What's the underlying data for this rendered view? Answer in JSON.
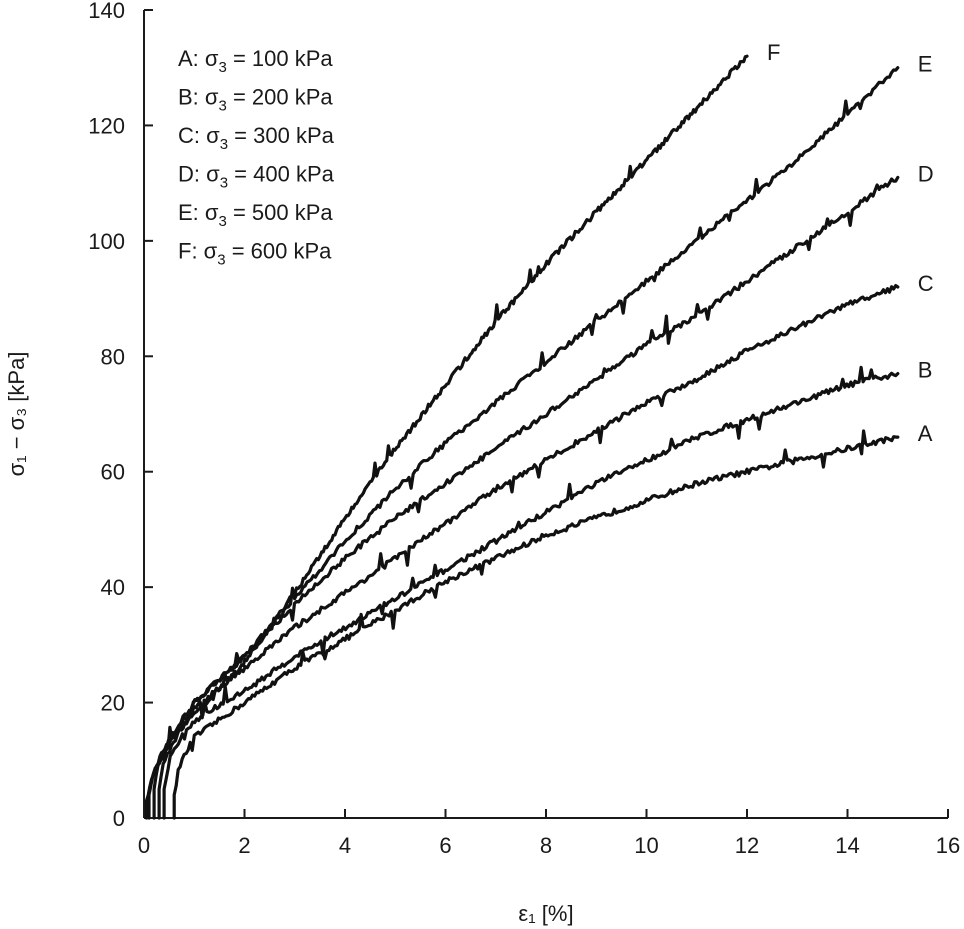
{
  "chart_data": {
    "type": "line",
    "title": "",
    "xlabel": "ε₁ [%]",
    "ylabel": "σ₁ − σ₃ [kPa]",
    "xlim": [
      0,
      16
    ],
    "ylim": [
      0,
      140
    ],
    "xticks": [
      0,
      2,
      4,
      6,
      8,
      10,
      12,
      14,
      16
    ],
    "yticks": [
      0,
      20,
      40,
      60,
      80,
      100,
      120,
      140
    ],
    "grid": false,
    "legend_position": "top-left",
    "legend": [
      {
        "id": "A",
        "prefix": "A: ",
        "symbol": "σ",
        "sub": "3",
        "suffix": " = 100 kPa"
      },
      {
        "id": "B",
        "prefix": "B: ",
        "symbol": "σ",
        "sub": "3",
        "suffix": " = 200 kPa"
      },
      {
        "id": "C",
        "prefix": "C: ",
        "symbol": "σ",
        "sub": "3",
        "suffix": " = 300 kPa"
      },
      {
        "id": "D",
        "prefix": "D: ",
        "symbol": "σ",
        "sub": "3",
        "suffix": " = 400 kPa"
      },
      {
        "id": "E",
        "prefix": "E: ",
        "symbol": "σ",
        "sub": "3",
        "suffix": " = 500 kPa"
      },
      {
        "id": "F",
        "prefix": "F: ",
        "symbol": "σ",
        "sub": "3",
        "suffix": " = 600 kPa"
      }
    ],
    "series": [
      {
        "name": "A",
        "label": "A",
        "sigma3_kPa": 100,
        "x": [
          0.6,
          0.6,
          0.7,
          1.0,
          1.5,
          2,
          3,
          4,
          5,
          6,
          7,
          8,
          9,
          10,
          11,
          12,
          13,
          14,
          15
        ],
        "y": [
          0,
          4,
          9,
          14,
          17,
          20,
          26,
          31,
          36,
          41,
          45,
          49,
          52,
          55,
          58,
          60,
          62,
          64,
          66
        ]
      },
      {
        "name": "B",
        "label": "B",
        "sigma3_kPa": 200,
        "x": [
          0.4,
          0.4,
          0.5,
          0.8,
          1.2,
          2,
          3,
          4,
          5,
          6,
          7,
          8,
          9,
          10,
          11,
          12,
          13,
          14,
          15
        ],
        "y": [
          0,
          5,
          10,
          15,
          18,
          22,
          28,
          33,
          38,
          43,
          48,
          53,
          58,
          62,
          66,
          69,
          72,
          75,
          77
        ]
      },
      {
        "name": "C",
        "label": "C",
        "sigma3_kPa": 300,
        "x": [
          0.3,
          0.3,
          0.4,
          0.7,
          1.0,
          2,
          3,
          4,
          5,
          6,
          7,
          8,
          9,
          10,
          11,
          12,
          13,
          14,
          15
        ],
        "y": [
          0,
          5,
          10,
          15,
          19,
          26,
          33,
          39,
          45,
          51,
          57,
          62,
          67,
          72,
          76,
          81,
          85,
          89,
          92
        ]
      },
      {
        "name": "D",
        "label": "D",
        "sigma3_kPa": 400,
        "x": [
          0.2,
          0.2,
          0.3,
          0.6,
          1.0,
          2,
          3,
          4,
          5,
          6,
          7,
          8,
          9,
          10,
          11,
          12,
          13,
          14,
          15
        ],
        "y": [
          0,
          5,
          10,
          15,
          20,
          28,
          37,
          45,
          52,
          58,
          64,
          70,
          76,
          82,
          87,
          93,
          99,
          105,
          111
        ]
      },
      {
        "name": "E",
        "label": "E",
        "sigma3_kPa": 500,
        "x": [
          0.1,
          0.1,
          0.2,
          0.5,
          1.0,
          2,
          3,
          4,
          5,
          6,
          7,
          8,
          9,
          10,
          11,
          12,
          13,
          14,
          15
        ],
        "y": [
          0,
          4,
          8,
          13,
          20,
          28,
          38,
          48,
          57,
          65,
          72,
          79,
          86,
          93,
          100,
          107,
          114,
          122,
          130
        ]
      },
      {
        "name": "F",
        "label": "F",
        "sigma3_kPa": 600,
        "x": [
          0.05,
          0.05,
          0.15,
          0.4,
          1.0,
          2,
          3,
          4,
          5,
          6,
          7,
          8,
          9,
          10,
          11,
          12
        ],
        "y": [
          0,
          3,
          7,
          12,
          18,
          27,
          39,
          52,
          64,
          75,
          86,
          96,
          105,
          114,
          123,
          132
        ]
      }
    ]
  }
}
